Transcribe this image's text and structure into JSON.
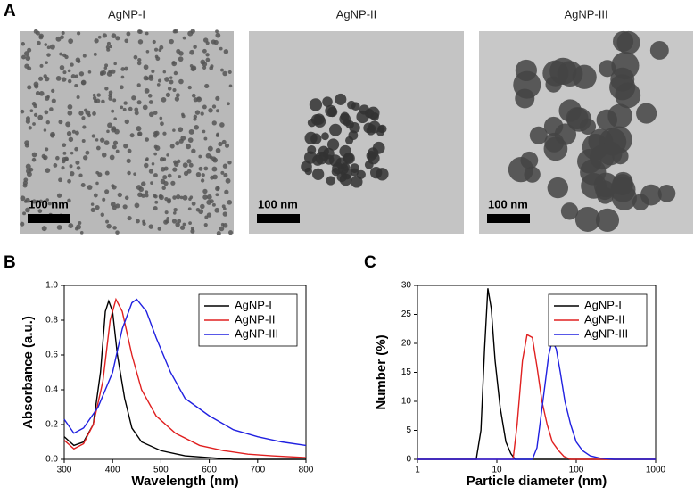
{
  "panel_a": {
    "label": "A",
    "images": [
      {
        "title": "AgNP-I",
        "scale_bar": "100 nm"
      },
      {
        "title": "AgNP-II",
        "scale_bar": "100 nm"
      },
      {
        "title": "AgNP-III",
        "scale_bar": "100 nm"
      }
    ]
  },
  "chart_data": [
    {
      "type": "line",
      "panel_label": "B",
      "x_label": "Wavelength (nm)",
      "y_label": "Absorbance (a.u.)",
      "xlim": [
        300,
        800
      ],
      "xticks": [
        300,
        400,
        500,
        600,
        700,
        800
      ],
      "ylim": [
        0,
        1
      ],
      "yticks": [
        {
          "value": 0,
          "label": "0.0"
        },
        0.2,
        0.4,
        0.6,
        0.8,
        {
          "value": 1,
          "label": "1.0"
        }
      ],
      "legend": "top-right",
      "series": [
        {
          "name": "AgNP-I",
          "color": "#000000",
          "x": [
            300,
            320,
            340,
            360,
            375,
            385,
            392,
            400,
            410,
            425,
            440,
            460,
            500,
            550,
            600,
            650,
            800
          ],
          "values": [
            0.13,
            0.08,
            0.1,
            0.2,
            0.5,
            0.85,
            0.91,
            0.85,
            0.6,
            0.35,
            0.18,
            0.1,
            0.05,
            0.02,
            0.01,
            0,
            0
          ]
        },
        {
          "name": "AgNP-II",
          "color": "#e02020",
          "x": [
            300,
            320,
            340,
            360,
            380,
            395,
            407,
            420,
            440,
            460,
            490,
            530,
            580,
            630,
            680,
            730,
            800
          ],
          "values": [
            0.11,
            0.06,
            0.09,
            0.2,
            0.45,
            0.8,
            0.92,
            0.85,
            0.6,
            0.4,
            0.25,
            0.15,
            0.08,
            0.05,
            0.03,
            0.02,
            0.01
          ]
        },
        {
          "name": "AgNP-III",
          "color": "#2020e0",
          "x": [
            300,
            320,
            340,
            370,
            400,
            420,
            440,
            450,
            470,
            490,
            520,
            550,
            600,
            650,
            700,
            750,
            800
          ],
          "values": [
            0.23,
            0.15,
            0.18,
            0.3,
            0.5,
            0.75,
            0.9,
            0.92,
            0.85,
            0.7,
            0.5,
            0.35,
            0.25,
            0.17,
            0.13,
            0.1,
            0.08
          ]
        }
      ]
    },
    {
      "type": "line",
      "panel_label": "C",
      "x_label": "Particle diameter (nm)",
      "y_label": "Number (%)",
      "xscale": "log",
      "xlim": [
        1,
        1000
      ],
      "xticks": [
        1,
        10,
        100,
        1000
      ],
      "ylim": [
        0,
        30
      ],
      "yticks": [
        0,
        5,
        10,
        15,
        20,
        25,
        30
      ],
      "legend": "top-right",
      "series": [
        {
          "name": "AgNP-I",
          "color": "#000000",
          "x": [
            1,
            5.5,
            6.3,
            7,
            7.7,
            8.5,
            9.5,
            11,
            13,
            15,
            17,
            1000
          ],
          "values": [
            0,
            0,
            5,
            19,
            29.5,
            26,
            17,
            9,
            3,
            1,
            0,
            0
          ]
        },
        {
          "name": "AgNP-II",
          "color": "#e02020",
          "x": [
            1,
            16,
            18,
            21,
            24,
            28,
            32,
            37,
            43,
            50,
            60,
            70,
            85,
            1000
          ],
          "values": [
            0,
            0,
            6,
            17,
            21.5,
            21,
            16,
            10,
            6,
            3,
            1.5,
            0.5,
            0,
            0
          ]
        },
        {
          "name": "AgNP-III",
          "color": "#2020e0",
          "x": [
            1,
            28,
            32,
            38,
            45,
            50,
            56,
            63,
            72,
            85,
            100,
            120,
            150,
            200,
            300,
            1000
          ],
          "values": [
            0,
            0,
            2,
            10,
            18,
            20.5,
            19,
            15,
            10,
            6,
            3,
            1.5,
            0.6,
            0.2,
            0,
            0
          ]
        }
      ]
    }
  ]
}
